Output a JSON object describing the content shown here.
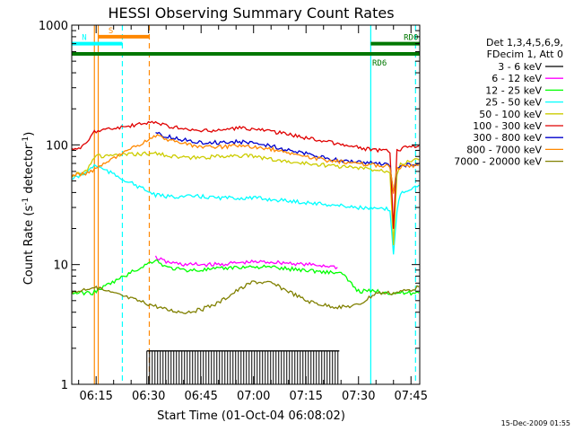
{
  "chart_data": {
    "type": "line",
    "title": "HESSI Observing Summary Count Rates",
    "xlabel": "Start Time (01-Oct-04 06:08:02)",
    "ylabel": "Count Rate (s",
    "ylabel_sup": "-1",
    "ylabel_tail": " detector",
    "ylabel_sup2": "-1",
    "ylabel_end": ")",
    "y_scale": "log",
    "ylim": [
      1,
      1000
    ],
    "xlim_minutes": [
      368.03,
      467.5
    ],
    "x_ticks": [
      {
        "label": "06:15",
        "min": 375
      },
      {
        "label": "06:30",
        "min": 390
      },
      {
        "label": "06:45",
        "min": 405
      },
      {
        "label": "07:00",
        "min": 420
      },
      {
        "label": "07:15",
        "min": 435
      },
      {
        "label": "07:30",
        "min": 450
      },
      {
        "label": "07:45",
        "min": 465
      }
    ],
    "y_ticks": [
      {
        "label": "1",
        "value": 1
      },
      {
        "label": "10",
        "value": 10
      },
      {
        "label": "100",
        "value": 100
      },
      {
        "label": "1000",
        "value": 1000
      }
    ],
    "legend": {
      "header1": "Det 1,3,4,5,6,9,",
      "header2": "FDecim 1, Att 0",
      "placement": "right"
    },
    "series": [
      {
        "name": "3 - 6 keV",
        "color": "#000000",
        "x": [
          389.5,
          392,
          395,
          400,
          405,
          410,
          415,
          420,
          425,
          430,
          435,
          440,
          444.5
        ],
        "y": [
          1.9,
          1.9,
          1.9,
          1.9,
          1.9,
          1.9,
          1.9,
          1.9,
          1.9,
          1.9,
          1.9,
          1.9,
          1.9
        ]
      },
      {
        "name": "6 - 12 keV",
        "color": "#ff00ff",
        "x": [
          392,
          395,
          400,
          405,
          410,
          415,
          420,
          425,
          430,
          435,
          440,
          444
        ],
        "y": [
          11.5,
          10.5,
          10,
          10,
          10,
          10.3,
          10.5,
          10.5,
          10.3,
          10,
          9.8,
          9.5
        ]
      },
      {
        "name": "12 - 25 keV",
        "color": "#00ff00",
        "x": [
          368.03,
          374,
          392,
          395,
          400,
          405,
          410,
          415,
          420,
          425,
          430,
          435,
          440,
          445,
          450,
          455,
          460,
          465,
          467.3
        ],
        "y": [
          5.8,
          5.8,
          11,
          9.5,
          9,
          9,
          9.2,
          9.5,
          9.6,
          9.5,
          9.2,
          9,
          8.7,
          8.5,
          6,
          6,
          5.8,
          5.8,
          5.8
        ]
      },
      {
        "name": "25 - 50 keV",
        "color": "#00ffff",
        "x": [
          368.03,
          372,
          374.5,
          392,
          395,
          400,
          405,
          410,
          415,
          420,
          425,
          430,
          435,
          440,
          445,
          450,
          455,
          459,
          460,
          461,
          462,
          464,
          467.3
        ],
        "y": [
          52,
          58,
          68,
          38,
          37,
          37,
          37,
          36,
          36,
          36,
          35,
          34,
          33,
          32,
          31,
          30,
          29,
          29,
          12,
          28,
          40,
          42,
          46
        ]
      },
      {
        "name": "50 - 100 keV",
        "color": "#cccc00",
        "x": [
          368.03,
          372,
          374.5,
          392,
          395,
          400,
          405,
          410,
          415,
          420,
          425,
          430,
          435,
          440,
          445,
          450,
          455,
          459,
          460,
          461,
          462,
          464,
          467.3
        ],
        "y": [
          55,
          60,
          80,
          85,
          82,
          78,
          78,
          80,
          82,
          80,
          76,
          72,
          70,
          68,
          66,
          64,
          62,
          60,
          15,
          58,
          70,
          72,
          75
        ]
      },
      {
        "name": "100 - 300 keV",
        "color": "#e00000",
        "x": [
          368.03,
          372,
          374.5,
          392,
          395,
          400,
          405,
          410,
          415,
          420,
          425,
          430,
          435,
          440,
          445,
          450,
          455,
          459,
          460,
          461,
          462,
          464,
          467.3
        ],
        "y": [
          90,
          100,
          130,
          155,
          145,
          135,
          130,
          132,
          138,
          136,
          130,
          122,
          115,
          108,
          100,
          95,
          90,
          88,
          20,
          88,
          92,
          95,
          98
        ]
      },
      {
        "name": "300 - 800 keV",
        "color": "#0000cc",
        "x": [
          392,
          395,
          400,
          405,
          410,
          415,
          420,
          425,
          430,
          435,
          440,
          445,
          450,
          455,
          459,
          460,
          461,
          462,
          464,
          467.3
        ],
        "y": [
          125,
          118,
          110,
          105,
          105,
          106,
          104,
          98,
          90,
          84,
          78,
          74,
          72,
          70,
          68,
          40,
          62,
          66,
          68,
          70
        ]
      },
      {
        "name": "800 - 7000 keV",
        "color": "#ff8800",
        "x": [
          368.03,
          372,
          374.5,
          392,
          395,
          400,
          405,
          410,
          415,
          420,
          425,
          430,
          435,
          440,
          445,
          450,
          455,
          459,
          460,
          461,
          462,
          464,
          467.3
        ],
        "y": [
          55,
          58,
          62,
          120,
          112,
          102,
          96,
          96,
          98,
          96,
          92,
          86,
          80,
          75,
          72,
          70,
          68,
          66,
          40,
          64,
          65,
          66,
          68
        ]
      },
      {
        "name": "7000 - 20000 keV",
        "color": "#808000",
        "x": [
          368.03,
          374,
          392,
          395,
          400,
          405,
          410,
          415,
          420,
          425,
          430,
          435,
          440,
          445,
          450,
          455,
          460,
          465,
          467.3
        ],
        "y": [
          5.8,
          6.5,
          4.5,
          4.2,
          4,
          4.2,
          4.8,
          6,
          7.2,
          7,
          6,
          5,
          4.6,
          4.4,
          4.6,
          5.8,
          5.8,
          6.2,
          6.5
        ]
      }
    ],
    "annotations": [
      {
        "label": "S",
        "color": "#ff8800",
        "x_start": 375.6,
        "x_end": 390.2,
        "y": 800
      },
      {
        "label": "N",
        "color": "#00ffff",
        "x_start": 368.03,
        "x_end": 382.5,
        "y": 700
      },
      {
        "label": "RD0",
        "color": "#007700",
        "x_start": 453.5,
        "x_end": 467.5,
        "y": 700
      },
      {
        "label": "RD6",
        "color": "#007700",
        "x_start": 368.03,
        "x_end": 467.5,
        "y": 575
      }
    ],
    "vlines": [
      {
        "min": 374.5,
        "color": "#ff8800",
        "style": "solid"
      },
      {
        "min": 375.6,
        "color": "#ff8800",
        "style": "solid"
      },
      {
        "min": 382.5,
        "color": "#00ffff",
        "style": "dashed"
      },
      {
        "min": 390.2,
        "color": "#ff8800",
        "style": "dashed"
      },
      {
        "min": 453.5,
        "color": "#00ffff",
        "style": "solid"
      },
      {
        "min": 466.3,
        "color": "#00ffff",
        "style": "dashed"
      }
    ]
  },
  "footer": {
    "timestamp": "15-Dec-2009 01:55"
  }
}
